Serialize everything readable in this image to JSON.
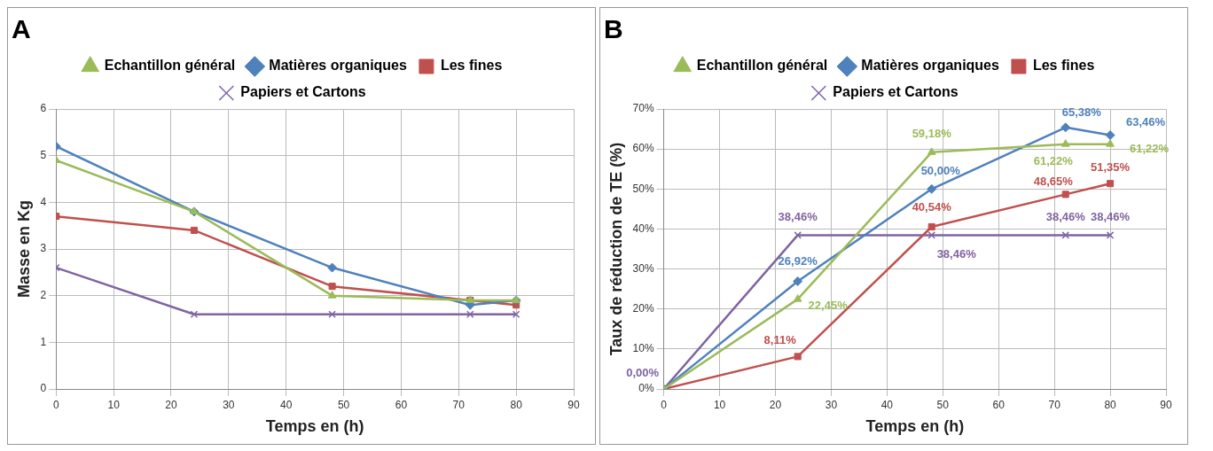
{
  "chart_data": [
    {
      "type": "line",
      "title": "A",
      "xlabel": "Temps en (h)",
      "ylabel": "Masse en Kg",
      "x": [
        0,
        24,
        48,
        72,
        80
      ],
      "xlim": [
        0,
        90
      ],
      "xticks": [
        0,
        10,
        20,
        30,
        40,
        50,
        60,
        70,
        80,
        90
      ],
      "ylim": [
        0,
        6
      ],
      "yticks": [
        0,
        1,
        2,
        3,
        4,
        5,
        6
      ],
      "grid": true,
      "legend": "top",
      "series": [
        {
          "name": "Echantillon général",
          "color": "#9bbb59",
          "marker": "triangle",
          "values": [
            4.9,
            3.8,
            2.0,
            1.9,
            1.9
          ]
        },
        {
          "name": "Matières organiques",
          "color": "#4f81bd",
          "marker": "diamond",
          "values": [
            5.2,
            3.8,
            2.6,
            1.8,
            1.9
          ]
        },
        {
          "name": "Les fines",
          "color": "#c0504d",
          "marker": "square",
          "values": [
            3.7,
            3.4,
            2.2,
            1.9,
            1.8
          ]
        },
        {
          "name": "Papiers et Cartons",
          "color": "#8064a2",
          "marker": "cross",
          "values": [
            2.6,
            1.6,
            1.6,
            1.6,
            1.6
          ]
        }
      ]
    },
    {
      "type": "line",
      "title": "B",
      "xlabel": "Temps en (h)",
      "ylabel": "Taux de réduction de TE (%)",
      "x": [
        0,
        24,
        48,
        72,
        80
      ],
      "xlim": [
        0,
        90
      ],
      "xticks": [
        0,
        10,
        20,
        30,
        40,
        50,
        60,
        70,
        80,
        90
      ],
      "ylim": [
        0,
        70
      ],
      "yticks": [
        {
          "value": 0,
          "label": "0%"
        },
        {
          "value": 10,
          "label": "10%"
        },
        {
          "value": 20,
          "label": "20%"
        },
        {
          "value": 30,
          "label": "30%"
        },
        {
          "value": 40,
          "label": "40%"
        },
        {
          "value": 50,
          "label": "50%"
        },
        {
          "value": 60,
          "label": "60%"
        },
        {
          "value": 70,
          "label": "70%"
        }
      ],
      "grid": true,
      "legend": "top",
      "series": [
        {
          "name": "Echantillon général",
          "color": "#9bbb59",
          "marker": "triangle",
          "values": [
            0,
            22.45,
            59.18,
            61.22,
            61.22
          ],
          "value_labels": [
            null,
            "22,45%",
            "59,18%",
            "61,22%",
            "61,22%"
          ]
        },
        {
          "name": "Matières organiques",
          "color": "#4f81bd",
          "marker": "diamond",
          "values": [
            0,
            26.92,
            50.0,
            65.38,
            63.46
          ],
          "value_labels": [
            null,
            "26,92%",
            "50,00%",
            "65,38%",
            "63,46%"
          ]
        },
        {
          "name": "Les fines",
          "color": "#c0504d",
          "marker": "square",
          "values": [
            0,
            8.11,
            40.54,
            48.65,
            51.35
          ],
          "value_labels": [
            null,
            "8,11%",
            "40,54%",
            "48,65%",
            "51,35%"
          ]
        },
        {
          "name": "Papiers et Cartons",
          "color": "#8064a2",
          "marker": "cross",
          "values": [
            0,
            38.46,
            38.46,
            38.46,
            38.46
          ],
          "value_labels": [
            "0,00%",
            "38,46%",
            "38,46%",
            "38,46%",
            "38,46%"
          ]
        }
      ]
    }
  ]
}
